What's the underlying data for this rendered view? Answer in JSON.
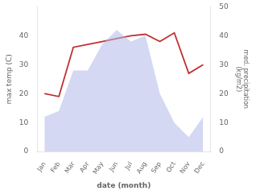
{
  "chart_data": {
    "type": "line",
    "xlabel": "date (month)",
    "ylabel": "max temp (C)",
    "y2label": "med. precipitation\n(kg/m2)",
    "categories": [
      "Jan",
      "Feb",
      "Mar",
      "Apr",
      "May",
      "Jun",
      "Jul",
      "Aug",
      "Sep",
      "Oct",
      "Nov",
      "Dec"
    ],
    "series": [
      {
        "type": "area",
        "color": "#b0b8e8",
        "values": [
          12.0,
          14.0,
          28.0,
          28.0,
          37.0,
          42.0,
          38.0,
          40.0,
          20.0,
          10.0,
          5.0,
          12.0
        ]
      },
      {
        "type": "line",
        "color": "#c03030",
        "axis": "y2",
        "values": [
          20.0,
          19.0,
          36.0,
          37.0,
          38.0,
          39.0,
          40.0,
          40.5,
          38.0,
          41.0,
          27.0,
          30.0
        ]
      }
    ],
    "ylim": [
      0,
      50
    ],
    "yticks": [
      0,
      10,
      20,
      30,
      40
    ],
    "y2lim": [
      0,
      50
    ],
    "y2ticks": [
      0,
      10,
      20,
      30,
      40,
      50
    ],
    "grid": false
  }
}
